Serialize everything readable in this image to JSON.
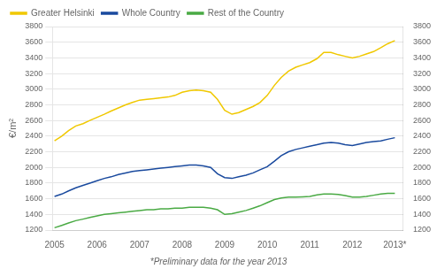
{
  "chart_data": {
    "type": "line",
    "ylabel": "€/m²",
    "annotations": [
      "*Preliminary data for the year 2013"
    ],
    "x": [
      2005.0,
      2005.17,
      2005.33,
      2005.5,
      2005.67,
      2005.83,
      2006.0,
      2006.17,
      2006.33,
      2006.5,
      2006.67,
      2006.83,
      2007.0,
      2007.17,
      2007.33,
      2007.5,
      2007.67,
      2007.83,
      2008.0,
      2008.17,
      2008.33,
      2008.5,
      2008.67,
      2008.83,
      2009.0,
      2009.17,
      2009.33,
      2009.5,
      2009.67,
      2009.83,
      2010.0,
      2010.17,
      2010.33,
      2010.5,
      2010.67,
      2010.83,
      2011.0,
      2011.17,
      2011.33,
      2011.5,
      2011.67,
      2011.83,
      2012.0,
      2012.17,
      2012.33,
      2012.5,
      2012.67,
      2012.83,
      2013.0
    ],
    "series": [
      {
        "name": "Greater Helsinki",
        "color": "#f0c800",
        "values": [
          2340,
          2400,
          2470,
          2530,
          2560,
          2600,
          2640,
          2680,
          2720,
          2760,
          2800,
          2830,
          2860,
          2870,
          2880,
          2890,
          2900,
          2920,
          2960,
          2980,
          2990,
          2980,
          2960,
          2870,
          2730,
          2680,
          2700,
          2740,
          2780,
          2830,
          2920,
          3050,
          3150,
          3230,
          3280,
          3310,
          3340,
          3390,
          3470,
          3470,
          3440,
          3420,
          3400,
          3420,
          3450,
          3480,
          3530,
          3580,
          3620
        ]
      },
      {
        "name": "Whole Country",
        "color": "#1a4a9e",
        "values": [
          1630,
          1660,
          1700,
          1740,
          1770,
          1800,
          1830,
          1860,
          1880,
          1910,
          1930,
          1950,
          1960,
          1970,
          1980,
          1990,
          2000,
          2010,
          2020,
          2030,
          2030,
          2020,
          2000,
          1920,
          1870,
          1860,
          1880,
          1900,
          1930,
          1970,
          2010,
          2080,
          2150,
          2200,
          2230,
          2250,
          2270,
          2290,
          2310,
          2320,
          2310,
          2290,
          2280,
          2300,
          2320,
          2330,
          2340,
          2360,
          2380
        ]
      },
      {
        "name": "Rest of the Country",
        "color": "#4aaa44",
        "values": [
          1230,
          1260,
          1290,
          1320,
          1340,
          1360,
          1380,
          1400,
          1410,
          1420,
          1430,
          1440,
          1450,
          1460,
          1460,
          1470,
          1470,
          1480,
          1480,
          1490,
          1490,
          1490,
          1480,
          1460,
          1400,
          1410,
          1430,
          1450,
          1480,
          1510,
          1550,
          1590,
          1610,
          1620,
          1620,
          1625,
          1630,
          1650,
          1660,
          1660,
          1655,
          1640,
          1620,
          1620,
          1630,
          1645,
          1660,
          1670,
          1670
        ]
      }
    ],
    "xlim": [
      2004.95,
      2013.2
    ],
    "xticks": [
      2005,
      2006,
      2007,
      2008,
      2009,
      2010,
      2011,
      2012,
      {
        "value": 2013,
        "label": "2013*"
      }
    ],
    "ylim": [
      1200,
      3800
    ],
    "yticks": [
      1200,
      1400,
      1600,
      1800,
      2000,
      2200,
      2400,
      2600,
      2800,
      3000,
      3200,
      3400,
      3600,
      3800
    ],
    "y2lim": [
      1200,
      3800
    ],
    "y2ticks": [
      1200,
      1400,
      1600,
      1800,
      2000,
      2200,
      2400,
      2600,
      2800,
      3000,
      3200,
      3400,
      3600,
      3800
    ],
    "grid": "y",
    "legend": "upper left"
  }
}
